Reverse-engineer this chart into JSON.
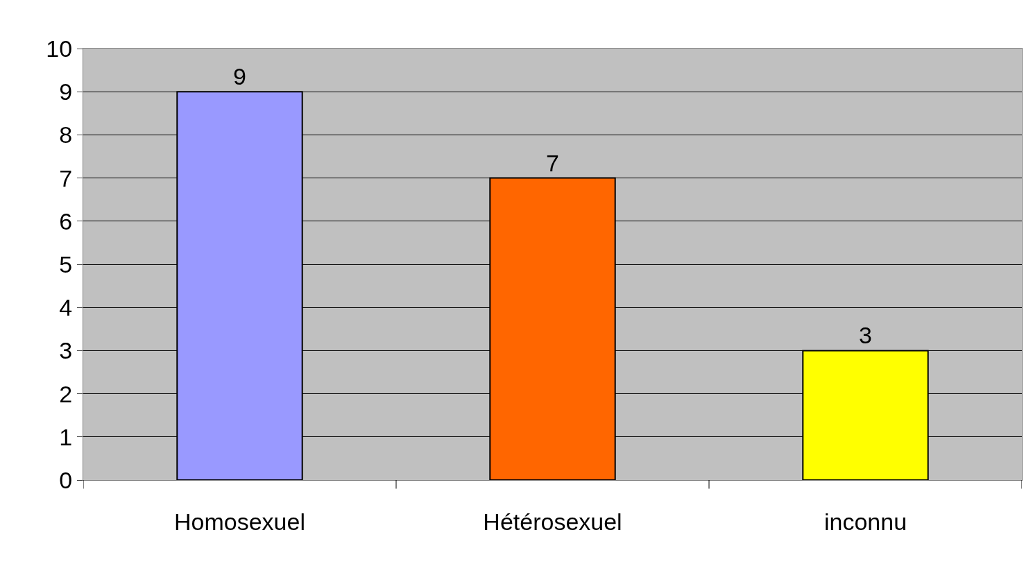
{
  "chart_data": {
    "type": "bar",
    "categories": [
      "Homosexuel",
      "Hétérosexuel",
      "inconnu"
    ],
    "values": [
      9,
      7,
      3
    ],
    "colors": [
      "#9999ff",
      "#ff6600",
      "#ffff00"
    ],
    "ylim": [
      0,
      10
    ],
    "yticks": [
      0,
      1,
      2,
      3,
      4,
      5,
      6,
      7,
      8,
      9,
      10
    ],
    "grid": "y",
    "data_labels": true,
    "legend": false
  }
}
